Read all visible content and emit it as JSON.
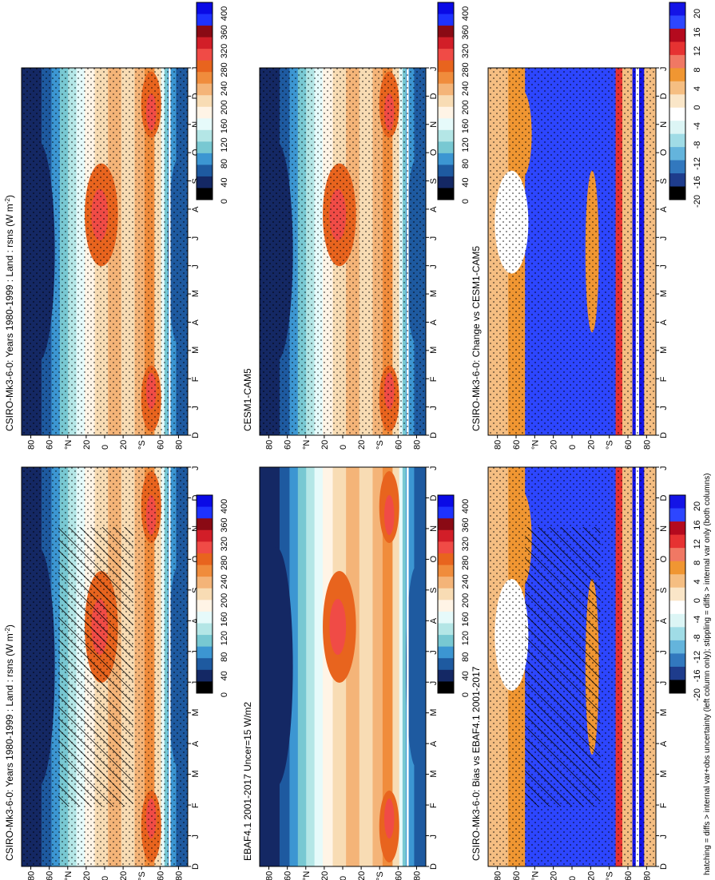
{
  "figure_caption": "hatching = diffs > internal var+obs uncertainty (left column only); stippling = diffs > internal var only (both columns)",
  "chart_data": [
    {
      "type": "heatmap",
      "panel": "left-top",
      "title": "CSIRO-Mk3-6-0: Years 1980-1999 : Land : rsns (W m",
      "title_sup": "-2",
      "title_end": ")",
      "x_ticks": [
        "D",
        "J",
        "F",
        "M",
        "A",
        "M",
        "J",
        "J",
        "A",
        "S",
        "O",
        "N",
        "D",
        "J"
      ],
      "y_ticks": [
        "80",
        "60",
        "°N",
        "20",
        "0",
        "20",
        "°S",
        "60",
        "80"
      ],
      "colorbar": [
        "400",
        "360",
        "320",
        "280",
        "240",
        "200",
        "160",
        "120",
        "80",
        "40",
        "0"
      ],
      "overlays": [
        "hatching",
        "stippling"
      ]
    },
    {
      "type": "heatmap",
      "panel": "left-middle",
      "title": "EBAF4.1 2001-2017 Uncer=15 W/m2",
      "x_ticks": [
        "D",
        "J",
        "F",
        "M",
        "A",
        "M",
        "J",
        "J",
        "A",
        "S",
        "O",
        "N",
        "D",
        "J"
      ],
      "y_ticks": [
        "80",
        "60",
        "°N",
        "20",
        "0",
        "20",
        "°S",
        "60",
        "80"
      ],
      "colorbar": [
        "400",
        "360",
        "320",
        "280",
        "240",
        "200",
        "160",
        "120",
        "80",
        "40",
        "0"
      ]
    },
    {
      "type": "heatmap",
      "panel": "left-bottom",
      "title": "CSIRO-Mk3-6-0: Bias vs EBAF4.1 2001-2017",
      "x_ticks": [
        "D",
        "J",
        "F",
        "M",
        "A",
        "M",
        "J",
        "J",
        "A",
        "S",
        "O",
        "N",
        "D",
        "J"
      ],
      "y_ticks": [
        "80",
        "60",
        "°N",
        "20",
        "0",
        "20",
        "°S",
        "60",
        "80"
      ],
      "colorbar": [
        "20",
        "16",
        "12",
        "8",
        "4",
        "0",
        "-4",
        "-8",
        "-12",
        "-16",
        "-20"
      ],
      "overlays": [
        "hatching",
        "stippling"
      ]
    },
    {
      "type": "heatmap",
      "panel": "right-top",
      "title": "CSIRO-Mk3-6-0: Years 1980-1999 : Land : rsns (W m",
      "title_sup": "-2",
      "title_end": ")",
      "x_ticks": [
        "D",
        "J",
        "F",
        "M",
        "A",
        "M",
        "J",
        "J",
        "A",
        "S",
        "O",
        "N",
        "D",
        "J"
      ],
      "y_ticks": [
        "80",
        "60",
        "°N",
        "20",
        "0",
        "20",
        "°S",
        "60",
        "80"
      ],
      "colorbar": [
        "400",
        "360",
        "320",
        "280",
        "240",
        "200",
        "160",
        "120",
        "80",
        "40",
        "0"
      ],
      "overlays": [
        "stippling"
      ]
    },
    {
      "type": "heatmap",
      "panel": "right-middle",
      "title": "CESM1-CAM5",
      "x_ticks": [
        "D",
        "J",
        "F",
        "M",
        "A",
        "M",
        "J",
        "J",
        "A",
        "S",
        "O",
        "N",
        "D",
        "J"
      ],
      "y_ticks": [
        "80",
        "60",
        "°N",
        "20",
        "0",
        "20",
        "°S",
        "60",
        "80"
      ],
      "colorbar": [
        "400",
        "360",
        "320",
        "280",
        "240",
        "200",
        "160",
        "120",
        "80",
        "40",
        "0"
      ],
      "overlays": [
        "stippling"
      ]
    },
    {
      "type": "heatmap",
      "panel": "right-bottom",
      "title": "CSIRO-Mk3-6-0: Change vs CESM1-CAM5",
      "x_ticks": [
        "D",
        "J",
        "F",
        "M",
        "A",
        "M",
        "J",
        "J",
        "A",
        "S",
        "O",
        "N",
        "D",
        "J"
      ],
      "y_ticks": [
        "80",
        "60",
        "°N",
        "20",
        "0",
        "20",
        "°S",
        "60",
        "80"
      ],
      "colorbar": [
        "20",
        "16",
        "12",
        "8",
        "4",
        "0",
        "-4",
        "-8",
        "-12",
        "-16",
        "-20"
      ],
      "overlays": [
        "stippling"
      ]
    }
  ],
  "colors": {
    "climo": [
      "#0a0ae6",
      "#1e32ff",
      "#8a0a14",
      "#d21e28",
      "#f04b46",
      "#e8641e",
      "#f08c3c",
      "#f4b478",
      "#f8dcb4",
      "#fff4e6",
      "#e6fafa",
      "#b4e6e6",
      "#78c8d2",
      "#3c96d2",
      "#1e5aa0",
      "#142864",
      "#000000"
    ],
    "diff": [
      "#1414e6",
      "#2d46ff",
      "#b40a1e",
      "#e63232",
      "#f07864",
      "#f09632",
      "#f5be82",
      "#fae6c8",
      "#ffffff",
      "#dcf5f5",
      "#a0dce6",
      "#64b4dc",
      "#3278be",
      "#1e3c8c",
      "#000000"
    ]
  }
}
